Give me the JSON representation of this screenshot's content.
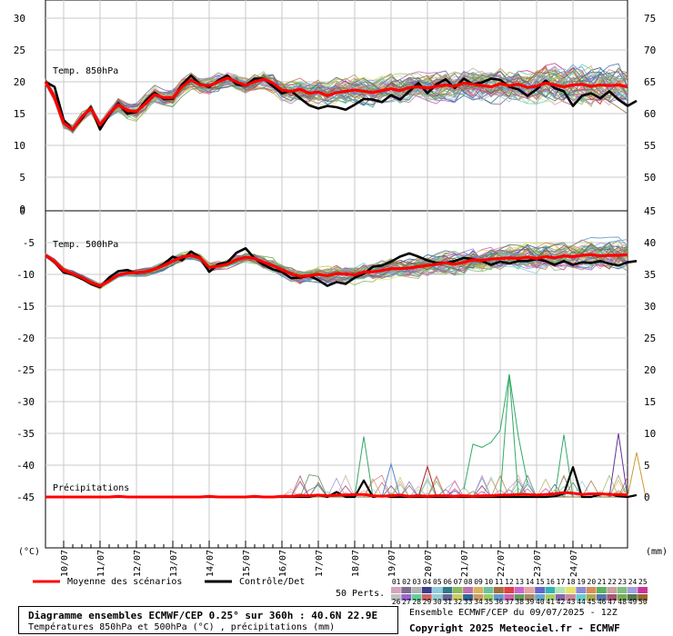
{
  "chart_data": [
    {
      "type": "line",
      "panel": "top",
      "label": "Temp. 850hPa",
      "yaxis_left": {
        "ticks": [
          30,
          25,
          20,
          15,
          10,
          5,
          0
        ],
        "unit": "°C"
      },
      "yaxis_right": {
        "ticks": [
          75,
          70,
          65,
          60,
          55,
          50,
          45
        ]
      },
      "series": [
        {
          "name": "Moyenne des scénarios",
          "color": "#ff0000",
          "values": [
            20,
            17.5,
            13.5,
            12.5,
            14.5,
            15.8,
            13.2,
            15,
            16.4,
            15.5,
            15.3,
            16.6,
            18,
            17.5,
            17.5,
            19.2,
            20.3,
            19.5,
            19.4,
            20,
            20.6,
            20,
            19.4,
            20,
            20.4,
            19.8,
            18.7,
            18.5,
            18.8,
            18.2,
            18.4,
            17.8,
            18.3,
            18.5,
            18.7,
            18.5,
            18.3,
            18.6,
            18.9,
            18.6,
            19.1,
            19.2,
            19,
            19.3,
            19.5,
            19.3,
            19.8,
            19.6,
            19.4,
            19.2,
            19.7,
            19.4,
            19.6,
            19.1,
            19.3,
            19.8,
            19.5,
            19.2,
            19.5,
            19.6,
            19.3,
            19.5,
            19.4,
            19.5,
            19.2
          ]
        },
        {
          "name": "Contrôle/Det",
          "color": "#000000",
          "values": [
            20,
            19.2,
            14,
            12.5,
            14.2,
            16,
            12.5,
            14.8,
            16.6,
            15,
            15.2,
            17,
            18.3,
            17.3,
            17.3,
            19.5,
            21,
            19.6,
            19.2,
            20.2,
            21,
            19.6,
            19.4,
            20.5,
            20.5,
            19.3,
            18.2,
            18.6,
            17.4,
            16.3,
            15.8,
            16.2,
            16,
            15.6,
            16.4,
            17.3,
            17.2,
            16.8,
            17.9,
            17.2,
            18.5,
            19.8,
            18.2,
            19.6,
            20.4,
            19,
            20.5,
            19.6,
            19.9,
            20.5,
            20.3,
            19.2,
            18.8,
            17.8,
            18.8,
            20.2,
            19,
            18.5,
            16.2,
            17.8,
            18.2,
            17.4,
            18.5,
            17.2,
            16.2,
            17
          ]
        }
      ],
      "ensemble_members": 50
    },
    {
      "type": "line",
      "panel": "middle",
      "label": "Temp. 500hPa",
      "yaxis_left": {
        "ticks": [
          -5,
          -10,
          -15,
          -20,
          -25,
          -30,
          -35,
          -40,
          -45
        ],
        "unit": "°C"
      },
      "yaxis_right": {
        "ticks": [
          45,
          40,
          35,
          30,
          25,
          20,
          15,
          10,
          5,
          0
        ]
      },
      "series": [
        {
          "name": "Moyenne des scénarios",
          "color": "#ff0000",
          "values": [
            -7,
            -8,
            -9.4,
            -9.9,
            -10.5,
            -11.3,
            -11.8,
            -11,
            -10.1,
            -9.8,
            -9.7,
            -9.6,
            -9.2,
            -8.6,
            -7.9,
            -7.3,
            -7,
            -7.4,
            -8.9,
            -8.7,
            -8.4,
            -7.7,
            -7.3,
            -7.5,
            -8.1,
            -8.6,
            -9.3,
            -9.9,
            -10.3,
            -10.2,
            -10,
            -10.2,
            -9.9,
            -9.9,
            -10.1,
            -9.6,
            -9.6,
            -9.4,
            -9.1,
            -9.1,
            -9,
            -8.8,
            -8.6,
            -8.4,
            -8.2,
            -8.4,
            -8.1,
            -7.7,
            -7.8,
            -7.6,
            -7.5,
            -7.4,
            -7.5,
            -7.3,
            -7.5,
            -7.2,
            -7.4,
            -7.1,
            -7.2,
            -7,
            -6.9,
            -7.1,
            -7,
            -7,
            -6.9
          ]
        },
        {
          "name": "Contrôle/Det",
          "color": "#000000",
          "values": [
            -7,
            -8.1,
            -9.7,
            -10,
            -10.7,
            -11.5,
            -12,
            -10.5,
            -9.5,
            -9.3,
            -9.8,
            -9.6,
            -9.2,
            -8.4,
            -7.2,
            -7.8,
            -6.4,
            -7.3,
            -9.6,
            -8.4,
            -8.1,
            -6.6,
            -5.9,
            -7.5,
            -8.5,
            -9.2,
            -9.6,
            -10.6,
            -10.5,
            -10.2,
            -10.9,
            -11.8,
            -11.2,
            -11.5,
            -10.5,
            -9.9,
            -8.8,
            -8.6,
            -8,
            -7.2,
            -6.7,
            -7.2,
            -7.8,
            -8.2,
            -8.2,
            -7.9,
            -7.4,
            -7.6,
            -7.9,
            -8.5,
            -8,
            -8.3,
            -7.9,
            -7.9,
            -7.6,
            -7.9,
            -8.5,
            -7.9,
            -8.5,
            -8.1,
            -8.2,
            -7.9,
            -8.3,
            -8.6,
            -8.1,
            -7.9
          ]
        }
      ],
      "ensemble_members": 50
    },
    {
      "type": "line",
      "panel": "bottom",
      "label": "Précipitations",
      "yaxis_right": {
        "ticks": [
          20,
          15,
          10,
          5,
          0
        ],
        "unit": "mm"
      },
      "series": [
        {
          "name": "Moyenne des scénarios",
          "color": "#ff0000",
          "values": [
            0,
            0,
            0,
            0,
            0,
            0,
            0,
            0,
            0.1,
            0,
            0,
            0,
            0,
            0,
            0,
            0,
            0,
            0,
            0.1,
            0,
            0,
            0,
            0,
            0.1,
            0,
            0,
            0.1,
            0.1,
            0.2,
            0.2,
            0.3,
            0.2,
            0.3,
            0.3,
            0.4,
            0.4,
            0.2,
            0.1,
            0.2,
            0.3,
            0.1,
            0.2,
            0.1,
            0.2,
            0.2,
            0.1,
            0.2,
            0.1,
            0.2,
            0.2,
            0.3,
            0.3,
            0.4,
            0.4,
            0.3,
            0.4,
            0.5,
            0.7,
            0.6,
            0.4,
            0.5,
            0.5,
            0.4,
            0.4,
            0.3
          ]
        },
        {
          "name": "Contrôle/Det",
          "color": "#000000",
          "values": [
            0,
            0,
            0,
            0,
            0,
            0,
            0,
            0,
            0,
            0,
            0,
            0,
            0,
            0,
            0,
            0,
            0,
            0,
            0,
            0,
            0,
            0,
            0,
            0,
            0,
            0,
            0,
            0,
            0,
            0,
            0.3,
            0,
            0.8,
            0,
            0,
            2.6,
            0,
            0.2,
            0,
            0,
            0,
            0,
            0,
            0,
            0,
            0,
            0,
            0,
            0,
            0,
            0,
            0,
            0,
            0,
            0,
            0,
            0.1,
            0.5,
            4.7,
            0,
            0,
            0.4,
            0.5,
            0.1,
            0,
            0.3
          ]
        }
      ],
      "peaks": [
        {
          "x_index": 51,
          "value": 19.3,
          "color": "#33aa66"
        },
        {
          "x_index": 35,
          "value": 9.5,
          "color": "#33aa66"
        },
        {
          "x_index": 57,
          "value": 9.8,
          "color": "#33aa66"
        },
        {
          "x_index": 38,
          "value": 5.2,
          "color": "#5588cc"
        },
        {
          "x_index": 42,
          "value": 4.8,
          "color": "#aa2222"
        },
        {
          "x_index": 63,
          "value": 10,
          "color": "#663399"
        },
        {
          "x_index": 65,
          "value": 7,
          "color": "#cc9933"
        }
      ]
    }
  ],
  "x_axis": {
    "dates": [
      "10/07",
      "11/07",
      "12/07",
      "13/07",
      "14/07",
      "15/07",
      "16/07",
      "17/07",
      "18/07",
      "19/07",
      "20/07",
      "21/07",
      "22/07",
      "23/07",
      "24/07"
    ]
  },
  "unit_left": "(°C)",
  "unit_right": "(mm)",
  "legend": {
    "mean_label": "Moyenne des scénarios",
    "control_label": "Contrôle/Det",
    "perts_label": "50 Perts.",
    "row1": [
      "01",
      "02",
      "03",
      "04",
      "05",
      "06",
      "07",
      "08",
      "09",
      "10",
      "11",
      "12",
      "13",
      "14",
      "15",
      "16",
      "17",
      "18",
      "19",
      "20",
      "21",
      "22",
      "23",
      "24",
      "25"
    ],
    "row2": [
      "26",
      "27",
      "28",
      "29",
      "30",
      "31",
      "32",
      "33",
      "34",
      "35",
      "36",
      "37",
      "38",
      "39",
      "40",
      "41",
      "42",
      "43",
      "44",
      "45",
      "46",
      "47",
      "48",
      "49",
      "50"
    ],
    "colors_row1": [
      "#d7a3c0",
      "#7e6c8e",
      "#b3b3b3",
      "#3d3d8f",
      "#8ecae0",
      "#2e7a8a",
      "#8dbb5a",
      "#c16fb0",
      "#d9b35a",
      "#6fbf9f",
      "#a16e3e",
      "#e04040",
      "#cc66cc",
      "#e5a3a3",
      "#6666cc",
      "#33b3b3",
      "#b3e5b3",
      "#e5e566",
      "#8c8cd9",
      "#d98c5a",
      "#5ab35a",
      "#c8a0a0",
      "#7fbf7f",
      "#a0a0e0",
      "#cc3399"
    ],
    "colors_row2": [
      "#c0c0c0",
      "#9966cc",
      "#66cc99",
      "#cc6666",
      "#99cccc",
      "#666699",
      "#cccc66",
      "#336699",
      "#cc9966",
      "#99cc66",
      "#6699cc",
      "#cc66aa",
      "#669966",
      "#aa8866",
      "#66aacc",
      "#aacc66",
      "#8866aa",
      "#cc8899",
      "#66cccc",
      "#aaaa55",
      "#5577aa",
      "#aa5577",
      "#77aa55",
      "#557755",
      "#996633"
    ]
  },
  "footer": {
    "title": "Diagramme ensembles ECMWF/CEP 0.25° sur 360h : 40.6N 22.9E",
    "subtitle": "Températures 850hPa et 500hPa (°C) , précipitations (mm)",
    "run": "Ensemble ECMWF/CEP du 09/07/2025 - 12Z",
    "copyright": "Copyright 2025 Meteociel.fr - ECMWF"
  }
}
